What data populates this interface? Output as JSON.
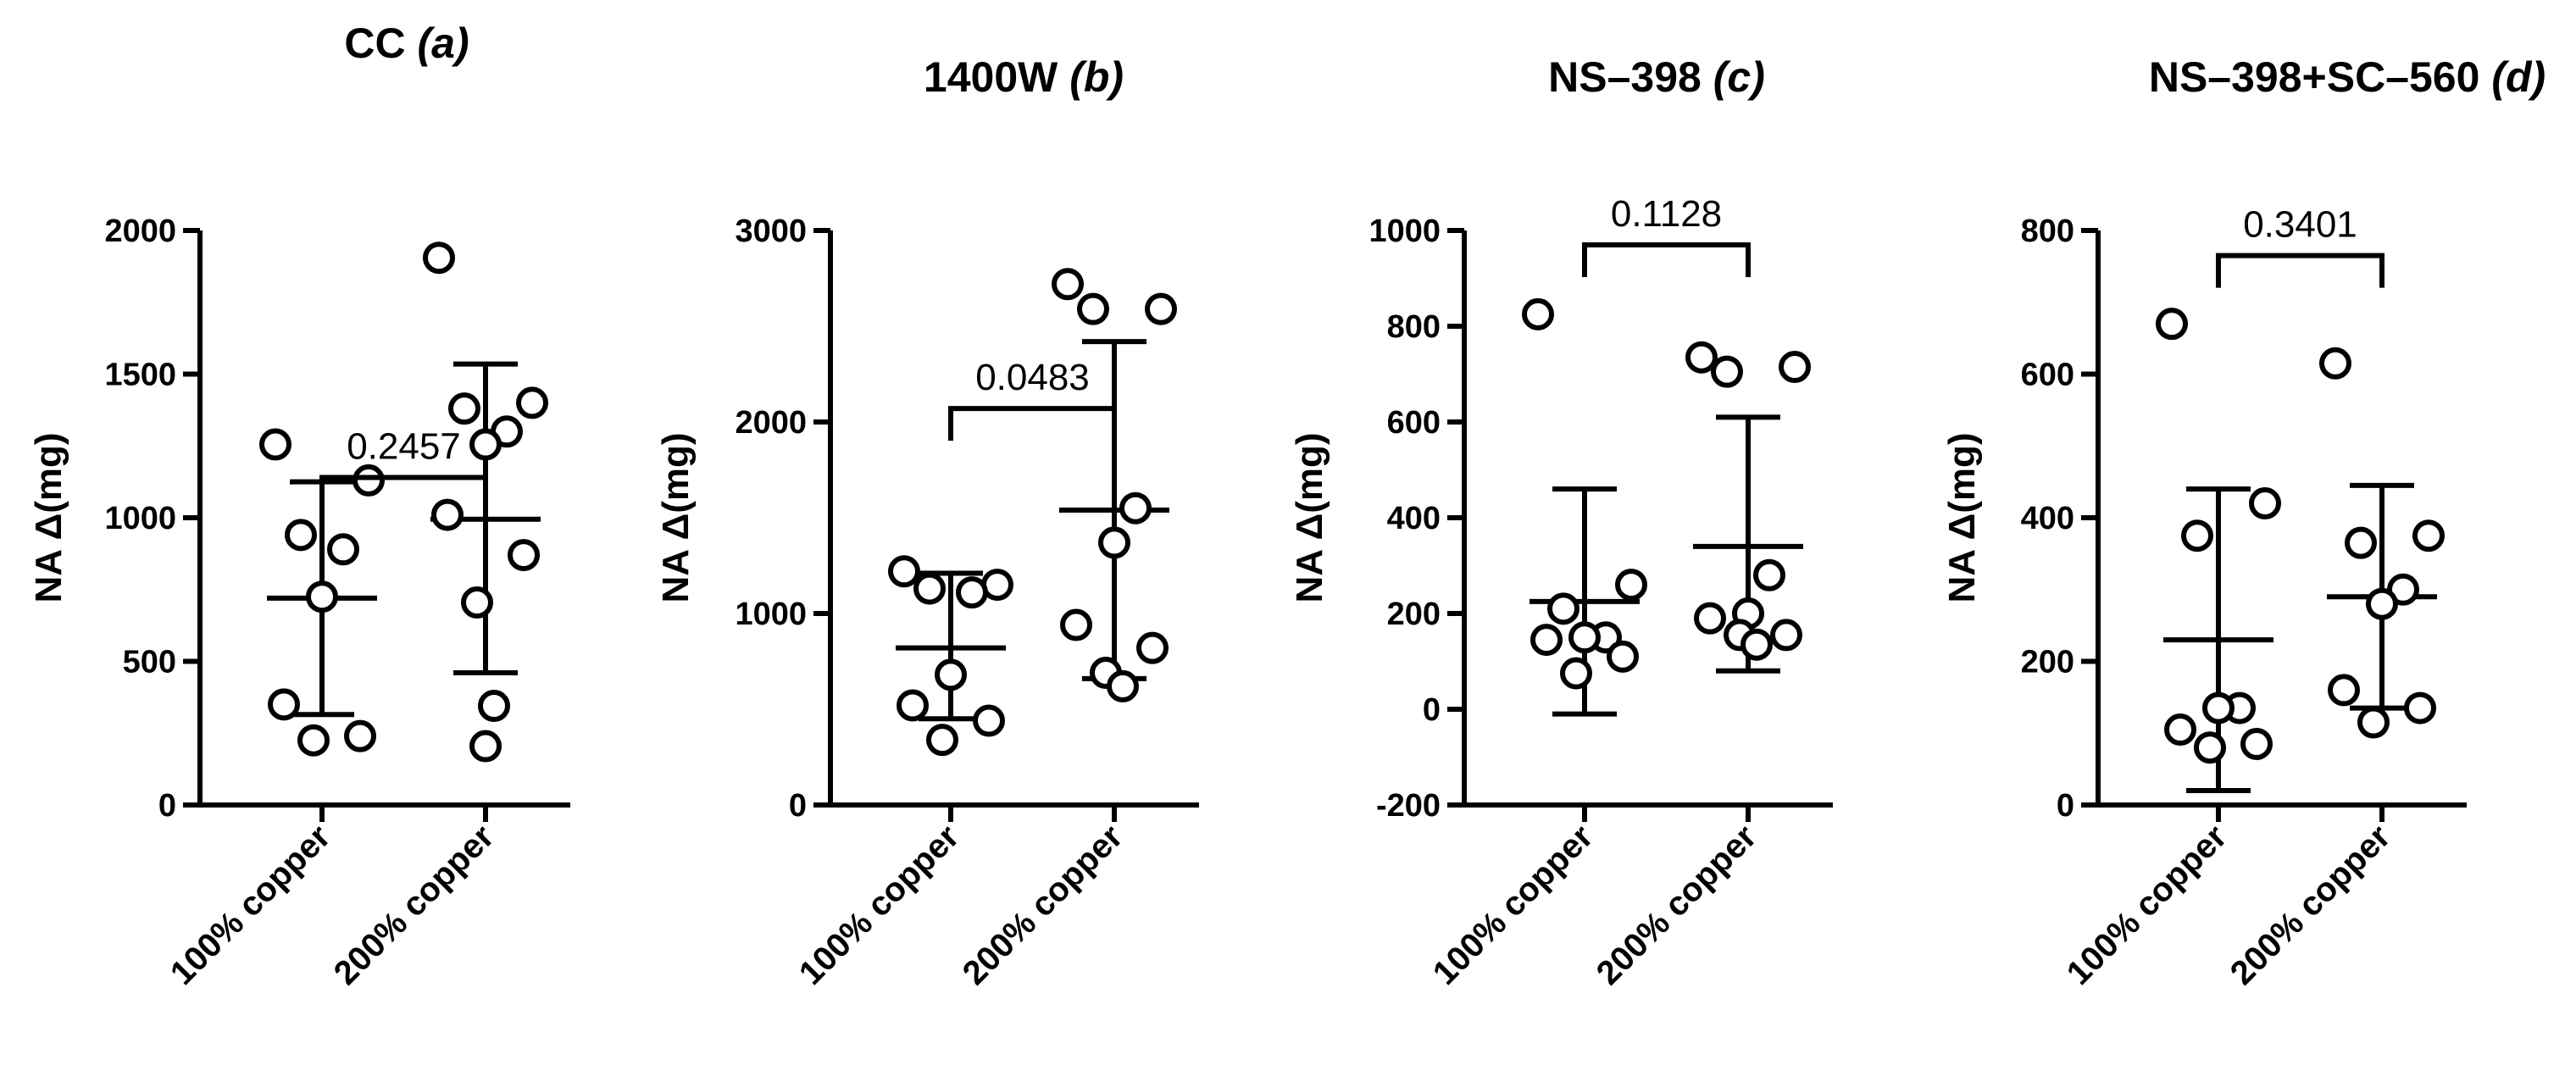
{
  "chart_data": [
    {
      "type": "scatter",
      "title": "CC",
      "title_suffix": "(a)",
      "ylabel": "NA Δ(mg)",
      "xlabel": "",
      "ylim": [
        0,
        2000
      ],
      "yticks": [
        0,
        500,
        1000,
        1500,
        2000
      ],
      "ytick_labels": [
        "0",
        "500",
        "1000",
        "1500",
        "2000"
      ],
      "categories": [
        "100% copper",
        "200% copper"
      ],
      "series": [
        {
          "name": "100% copper",
          "values": [
            1255,
            1130,
            940,
            890,
            725,
            350,
            240,
            225
          ],
          "mean": 720,
          "sd_low": 315,
          "sd_high": 1125
        },
        {
          "name": "200% copper",
          "values": [
            1905,
            1400,
            1380,
            1300,
            1255,
            1010,
            870,
            705,
            345,
            205
          ],
          "mean": 995,
          "sd_low": 460,
          "sd_high": 1535
        }
      ],
      "pvalue": "0.2457",
      "bracket_y": 1140
    },
    {
      "type": "scatter",
      "title": "1400W",
      "title_suffix": "(b)",
      "ylabel": "NA Δ(mg)",
      "xlabel": "",
      "ylim": [
        0,
        3000
      ],
      "yticks": [
        0,
        1000,
        2000,
        3000
      ],
      "ytick_labels": [
        "0",
        "1000",
        "2000",
        "3000"
      ],
      "categories": [
        "100% copper",
        "200% copper"
      ],
      "series": [
        {
          "name": "100% copper",
          "values": [
            1220,
            1150,
            1130,
            1110,
            680,
            520,
            440,
            340
          ],
          "mean": 820,
          "sd_low": 450,
          "sd_high": 1210
        },
        {
          "name": "200% copper",
          "values": [
            2720,
            2590,
            2590,
            1550,
            1370,
            940,
            820,
            690,
            620
          ],
          "mean": 1540,
          "sd_low": 660,
          "sd_high": 2420
        },
        {
          "name": "",
          "values": [],
          "mean": null
        }
      ],
      "pvalue": "0.0483",
      "bracket_y": 2070
    },
    {
      "type": "scatter",
      "title": "NS–398",
      "title_suffix": "(c)",
      "ylabel": "NA Δ(mg)",
      "xlabel": "",
      "ylim": [
        -200,
        1000
      ],
      "yticks": [
        -200,
        0,
        200,
        400,
        600,
        800,
        1000
      ],
      "ytick_labels": [
        "-200",
        "0",
        "200",
        "400",
        "600",
        "800",
        "1000"
      ],
      "categories": [
        "100% copper",
        "200% copper"
      ],
      "series": [
        {
          "name": "100% copper",
          "values": [
            825,
            260,
            210,
            150,
            150,
            145,
            110,
            75
          ],
          "mean": 225,
          "sd_low": -10,
          "sd_high": 460
        },
        {
          "name": "200% copper",
          "values": [
            735,
            715,
            705,
            280,
            200,
            190,
            155,
            155,
            135
          ],
          "mean": 340,
          "sd_low": 80,
          "sd_high": 610
        }
      ],
      "pvalue": "0.1128",
      "bracket_y": 970
    },
    {
      "type": "scatter",
      "title": "NS–398+SC–560",
      "title_suffix": "(d)",
      "ylabel": "NA Δ(mg)",
      "xlabel": "",
      "ylim": [
        0,
        800
      ],
      "yticks": [
        0,
        200,
        400,
        600,
        800
      ],
      "ytick_labels": [
        "0",
        "200",
        "400",
        "600",
        "800"
      ],
      "categories": [
        "100% copper",
        "200% copper"
      ],
      "series": [
        {
          "name": "100% copper",
          "values": [
            670,
            420,
            375,
            135,
            135,
            105,
            85,
            80
          ],
          "mean": 230,
          "sd_low": 20,
          "sd_high": 440
        },
        {
          "name": "200% copper",
          "values": [
            615,
            375,
            365,
            300,
            280,
            160,
            135,
            115
          ],
          "mean": 290,
          "sd_low": 135,
          "sd_high": 445
        }
      ],
      "pvalue": "0.3401",
      "bracket_y": 765
    }
  ]
}
